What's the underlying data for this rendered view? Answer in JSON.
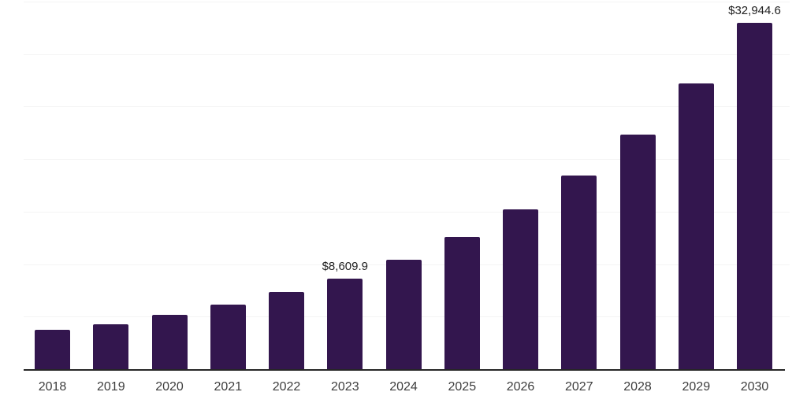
{
  "chart_data": {
    "type": "bar",
    "title": "",
    "xlabel": "",
    "ylabel": "",
    "categories": [
      "2018",
      "2019",
      "2020",
      "2021",
      "2022",
      "2023",
      "2024",
      "2025",
      "2026",
      "2027",
      "2028",
      "2029",
      "2030"
    ],
    "values": [
      3750,
      4270,
      5200,
      6150,
      7350,
      8609.9,
      10420,
      12600,
      15200,
      18450,
      22350,
      27200,
      32944.6
    ],
    "data_labels": [
      "",
      "",
      "",
      "",
      "",
      "$8,609.9",
      "",
      "",
      "",
      "",
      "",
      "",
      "$32,944.6"
    ],
    "ylim": [
      0,
      35000
    ],
    "gridline_interval": 5000,
    "grid": "horizontal-only",
    "legend": "none",
    "y_axis_labels_visible": false,
    "colors": {
      "bar": "#33164E",
      "axis_line": "#262626",
      "gridline": "#f4f4f4",
      "tick_label": "#3d3d3d",
      "value_label": "#1f1f1f",
      "background": "#ffffff"
    }
  }
}
